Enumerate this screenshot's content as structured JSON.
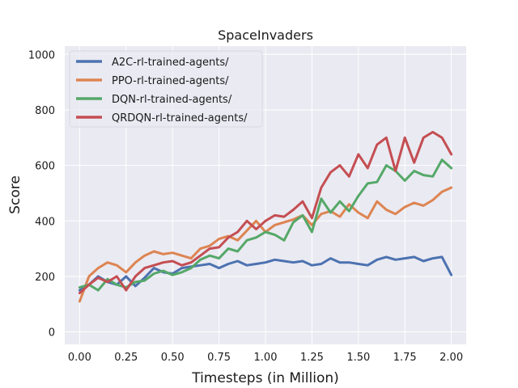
{
  "chart_data": {
    "type": "line",
    "title": "SpaceInvaders",
    "xlabel": "Timesteps (in Million)",
    "ylabel": "Score",
    "xlim": [
      -0.08,
      2.08
    ],
    "ylim": [
      -45,
      1030
    ],
    "xticks": [
      0.0,
      0.25,
      0.5,
      0.75,
      1.0,
      1.25,
      1.5,
      1.75,
      2.0
    ],
    "xtick_labels": [
      "0.00",
      "0.25",
      "0.50",
      "0.75",
      "1.00",
      "1.25",
      "1.50",
      "1.75",
      "2.00"
    ],
    "yticks": [
      0,
      200,
      400,
      600,
      800,
      1000
    ],
    "ytick_labels": [
      "0",
      "200",
      "400",
      "600",
      "800",
      "1000"
    ],
    "grid": true,
    "legend_position": "top-left",
    "background": "#eaeaf2",
    "series": [
      {
        "name": "A2C-rl-trained-agents/",
        "color": "#4c72b0",
        "x": [
          0.0,
          0.05,
          0.1,
          0.15,
          0.2,
          0.25,
          0.3,
          0.35,
          0.4,
          0.45,
          0.5,
          0.55,
          0.6,
          0.65,
          0.7,
          0.75,
          0.8,
          0.85,
          0.9,
          0.95,
          1.0,
          1.05,
          1.1,
          1.15,
          1.2,
          1.25,
          1.3,
          1.35,
          1.4,
          1.45,
          1.5,
          1.55,
          1.6,
          1.65,
          1.7,
          1.75,
          1.8,
          1.85,
          1.9,
          1.95,
          2.0
        ],
        "y": [
          150,
          170,
          200,
          180,
          170,
          200,
          165,
          195,
          230,
          215,
          210,
          230,
          235,
          240,
          245,
          230,
          245,
          255,
          240,
          245,
          250,
          260,
          255,
          250,
          255,
          240,
          245,
          265,
          250,
          250,
          245,
          240,
          260,
          270,
          260,
          265,
          270,
          255,
          265,
          270,
          205
        ]
      },
      {
        "name": "PPO-rl-trained-agents/",
        "color": "#dd8452",
        "x": [
          0.0,
          0.05,
          0.1,
          0.15,
          0.2,
          0.25,
          0.3,
          0.35,
          0.4,
          0.45,
          0.5,
          0.55,
          0.6,
          0.65,
          0.7,
          0.75,
          0.8,
          0.85,
          0.9,
          0.95,
          1.0,
          1.05,
          1.1,
          1.15,
          1.2,
          1.25,
          1.3,
          1.35,
          1.4,
          1.45,
          1.5,
          1.55,
          1.6,
          1.65,
          1.7,
          1.75,
          1.8,
          1.85,
          1.9,
          1.95,
          2.0
        ],
        "y": [
          110,
          200,
          230,
          250,
          240,
          215,
          250,
          275,
          290,
          280,
          285,
          275,
          265,
          300,
          310,
          335,
          345,
          330,
          365,
          400,
          360,
          385,
          395,
          405,
          420,
          385,
          425,
          435,
          415,
          460,
          430,
          410,
          470,
          440,
          425,
          450,
          465,
          455,
          475,
          505,
          520
        ]
      },
      {
        "name": "DQN-rl-trained-agents/",
        "color": "#55a868",
        "x": [
          0.0,
          0.05,
          0.1,
          0.15,
          0.2,
          0.25,
          0.3,
          0.35,
          0.4,
          0.45,
          0.5,
          0.55,
          0.6,
          0.65,
          0.7,
          0.75,
          0.8,
          0.85,
          0.9,
          0.95,
          1.0,
          1.05,
          1.1,
          1.15,
          1.2,
          1.25,
          1.3,
          1.35,
          1.4,
          1.45,
          1.5,
          1.55,
          1.6,
          1.65,
          1.7,
          1.75,
          1.8,
          1.85,
          1.9,
          1.95,
          2.0
        ],
        "y": [
          160,
          170,
          150,
          190,
          170,
          160,
          180,
          185,
          210,
          220,
          205,
          215,
          230,
          260,
          275,
          265,
          300,
          290,
          330,
          340,
          360,
          350,
          330,
          395,
          420,
          360,
          480,
          430,
          470,
          435,
          490,
          535,
          540,
          600,
          580,
          545,
          580,
          565,
          560,
          620,
          590
        ]
      },
      {
        "name": "QRDQN-rl-trained-agents/",
        "color": "#c44e52",
        "x": [
          0.0,
          0.05,
          0.1,
          0.15,
          0.2,
          0.25,
          0.3,
          0.35,
          0.4,
          0.45,
          0.5,
          0.55,
          0.6,
          0.65,
          0.7,
          0.75,
          0.8,
          0.85,
          0.9,
          0.95,
          1.0,
          1.05,
          1.1,
          1.15,
          1.2,
          1.25,
          1.3,
          1.35,
          1.4,
          1.45,
          1.5,
          1.55,
          1.6,
          1.65,
          1.7,
          1.75,
          1.8,
          1.85,
          1.9,
          1.95,
          2.0
        ],
        "y": [
          140,
          170,
          195,
          180,
          200,
          150,
          200,
          230,
          240,
          250,
          255,
          240,
          250,
          275,
          300,
          305,
          340,
          360,
          400,
          370,
          400,
          420,
          415,
          440,
          470,
          410,
          520,
          575,
          600,
          560,
          640,
          590,
          675,
          700,
          580,
          700,
          610,
          700,
          720,
          700,
          640
        ]
      }
    ]
  }
}
